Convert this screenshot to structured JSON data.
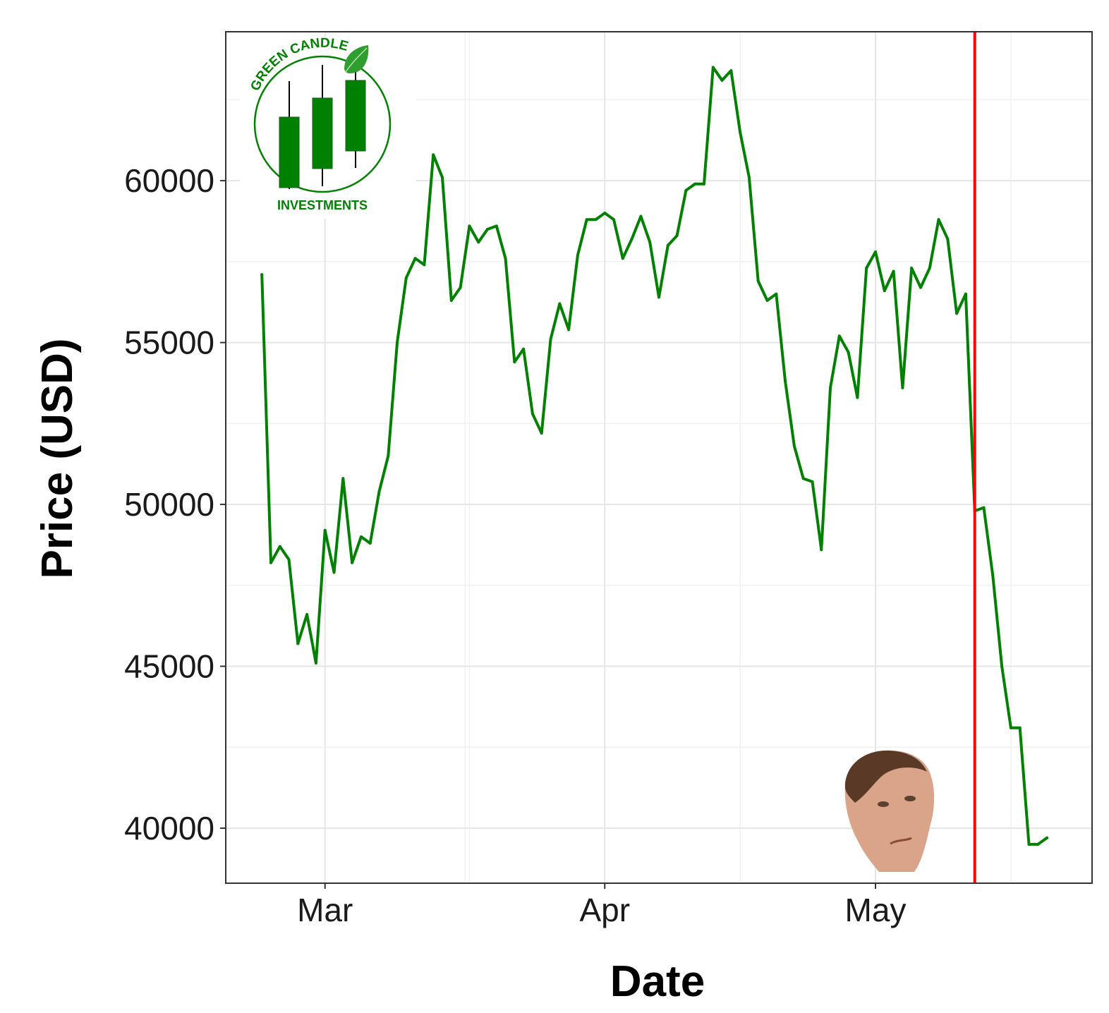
{
  "chart_data": {
    "type": "line",
    "xlabel": "Date",
    "ylabel": "Price (USD)",
    "x_tick_labels": [
      "Mar",
      "Apr",
      "May"
    ],
    "x_ticks": [
      "2021-03-01",
      "2021-04-01",
      "2021-05-01"
    ],
    "y_ticks": [
      40000,
      45000,
      50000,
      55000,
      60000
    ],
    "ylim": [
      38300,
      64600
    ],
    "xlim": [
      "2021-02-18",
      "2021-05-25"
    ],
    "grid": true,
    "legend": "none",
    "series": [
      {
        "color": "#008000",
        "x": [
          "2021-02-22",
          "2021-02-23",
          "2021-02-24",
          "2021-02-25",
          "2021-02-26",
          "2021-02-27",
          "2021-02-28",
          "2021-03-01",
          "2021-03-02",
          "2021-03-03",
          "2021-03-04",
          "2021-03-05",
          "2021-03-06",
          "2021-03-07",
          "2021-03-08",
          "2021-03-09",
          "2021-03-10",
          "2021-03-11",
          "2021-03-12",
          "2021-03-13",
          "2021-03-14",
          "2021-03-15",
          "2021-03-16",
          "2021-03-17",
          "2021-03-18",
          "2021-03-19",
          "2021-03-20",
          "2021-03-21",
          "2021-03-22",
          "2021-03-23",
          "2021-03-24",
          "2021-03-25",
          "2021-03-26",
          "2021-03-27",
          "2021-03-28",
          "2021-03-29",
          "2021-03-30",
          "2021-03-31",
          "2021-04-01",
          "2021-04-02",
          "2021-04-03",
          "2021-04-04",
          "2021-04-05",
          "2021-04-06",
          "2021-04-07",
          "2021-04-08",
          "2021-04-09",
          "2021-04-10",
          "2021-04-11",
          "2021-04-12",
          "2021-04-13",
          "2021-04-14",
          "2021-04-15",
          "2021-04-16",
          "2021-04-17",
          "2021-04-18",
          "2021-04-19",
          "2021-04-20",
          "2021-04-21",
          "2021-04-22",
          "2021-04-23",
          "2021-04-24",
          "2021-04-25",
          "2021-04-26",
          "2021-04-27",
          "2021-04-28",
          "2021-04-29",
          "2021-04-30",
          "2021-05-01",
          "2021-05-02",
          "2021-05-03",
          "2021-05-04",
          "2021-05-05",
          "2021-05-06",
          "2021-05-07",
          "2021-05-08",
          "2021-05-09",
          "2021-05-10",
          "2021-05-11",
          "2021-05-12",
          "2021-05-13",
          "2021-05-14",
          "2021-05-15",
          "2021-05-16",
          "2021-05-17",
          "2021-05-18",
          "2021-05-19",
          "2021-05-20"
        ],
        "y": [
          57100,
          48200,
          48700,
          48300,
          45700,
          46600,
          45100,
          49200,
          47900,
          50800,
          48200,
          49000,
          48800,
          50400,
          51500,
          55000,
          57000,
          57600,
          57400,
          60800,
          60100,
          56300,
          56700,
          58600,
          58100,
          58500,
          58600,
          57600,
          54400,
          54800,
          52800,
          52200,
          55100,
          56200,
          55400,
          57700,
          58800,
          58800,
          59000,
          58800,
          57600,
          58200,
          58900,
          58100,
          56400,
          58000,
          58300,
          59700,
          59900,
          59900,
          63500,
          63100,
          63400,
          61500,
          60100,
          56900,
          56300,
          56500,
          53800,
          51800,
          50800,
          50700,
          48600,
          53600,
          55200,
          54700,
          53300,
          57300,
          57800,
          56600,
          57200,
          53600,
          57300,
          56700,
          57300,
          58800,
          58200,
          55900,
          56500,
          49800,
          49900,
          47800,
          45000,
          43100,
          43100,
          39500,
          39500,
          39700
        ]
      }
    ],
    "annotations": [
      {
        "type": "vertical-line",
        "x": "2021-05-12",
        "color": "#ff0000"
      }
    ],
    "logo": {
      "arc_text": "GREEN CANDLE",
      "caption": "INVESTMENTS",
      "color": "#008000"
    }
  }
}
